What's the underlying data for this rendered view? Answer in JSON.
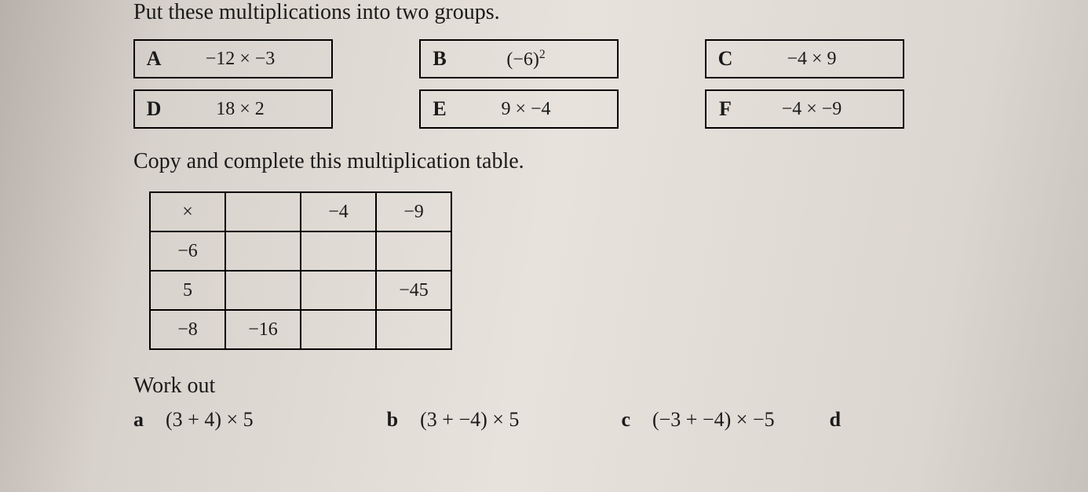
{
  "instruction1": "Put these multiplications into two groups.",
  "cards": {
    "row1": [
      {
        "letter": "A",
        "expr": "−12 × −3"
      },
      {
        "letter": "B",
        "expr": "(−6)²"
      },
      {
        "letter": "C",
        "expr": "−4 × 9"
      }
    ],
    "row2": [
      {
        "letter": "D",
        "expr": "18 × 2"
      },
      {
        "letter": "E",
        "expr": "9 × −4"
      },
      {
        "letter": "F",
        "expr": "−4 × −9"
      }
    ]
  },
  "instruction2": "Copy and complete this multiplication table.",
  "table": {
    "cells": [
      [
        "×",
        "",
        "−4",
        "−9"
      ],
      [
        "−6",
        "",
        "",
        ""
      ],
      [
        "5",
        "",
        "",
        "−45"
      ],
      [
        "−8",
        "−16",
        "",
        ""
      ]
    ]
  },
  "workoutLabel": "Work out",
  "workout": [
    {
      "part": "a",
      "expr": "(3 + 4) × 5"
    },
    {
      "part": "b",
      "expr": "(3 + −4) × 5"
    },
    {
      "part": "c",
      "expr": "(−3 + −4) × −5"
    },
    {
      "part": "d",
      "expr": ""
    }
  ]
}
